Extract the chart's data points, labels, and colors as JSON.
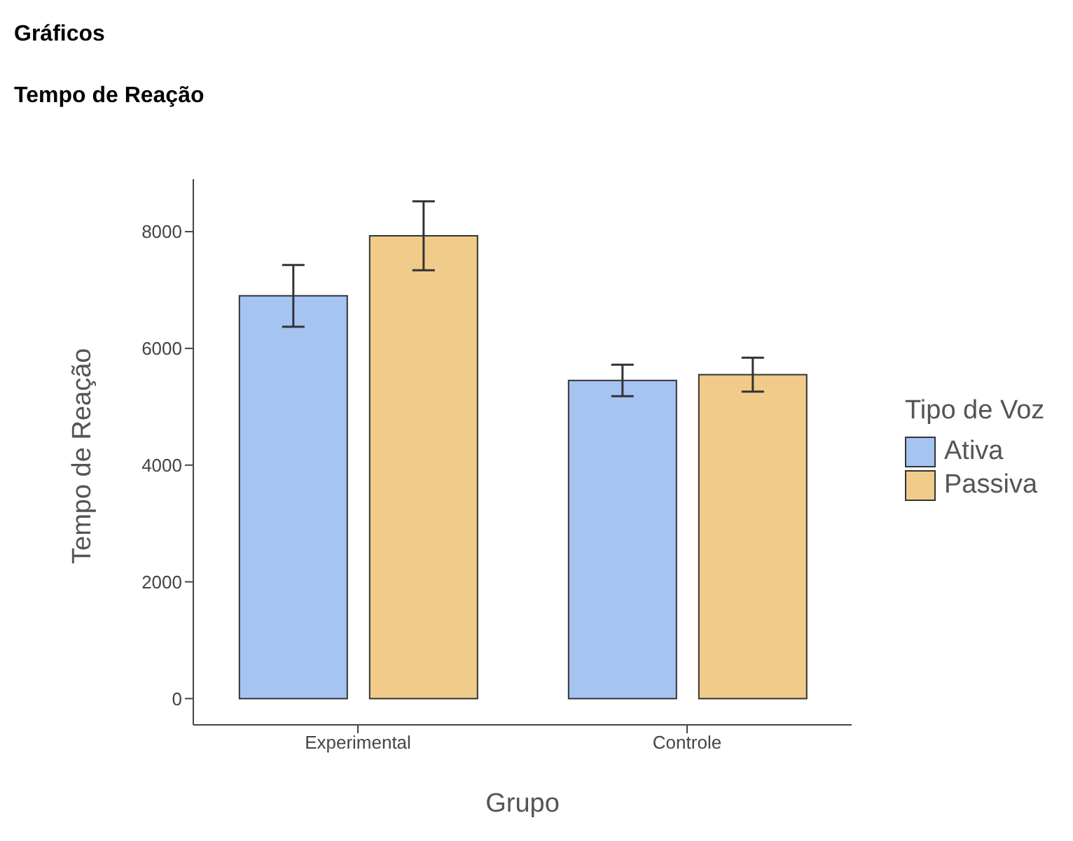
{
  "chart_data": {
    "type": "bar",
    "title": "Gráficos",
    "subtitle": "Tempo de Reação",
    "xlabel": "Grupo",
    "ylabel": "Tempo de Reação",
    "legend_title": "Tipo de Voz",
    "categories": [
      "Experimental",
      "Controle"
    ],
    "series": [
      {
        "name": "Ativa",
        "color": "#a6c4f2",
        "values": [
          6900,
          5450
        ],
        "errors": [
          530,
          270
        ]
      },
      {
        "name": "Passiva",
        "color": "#f0cb8a",
        "values": [
          7930,
          5550
        ],
        "errors": [
          590,
          290
        ]
      }
    ],
    "ylim": [
      -450,
      8900
    ],
    "yticks": [
      0,
      2000,
      4000,
      6000,
      8000
    ],
    "legend": "right"
  }
}
